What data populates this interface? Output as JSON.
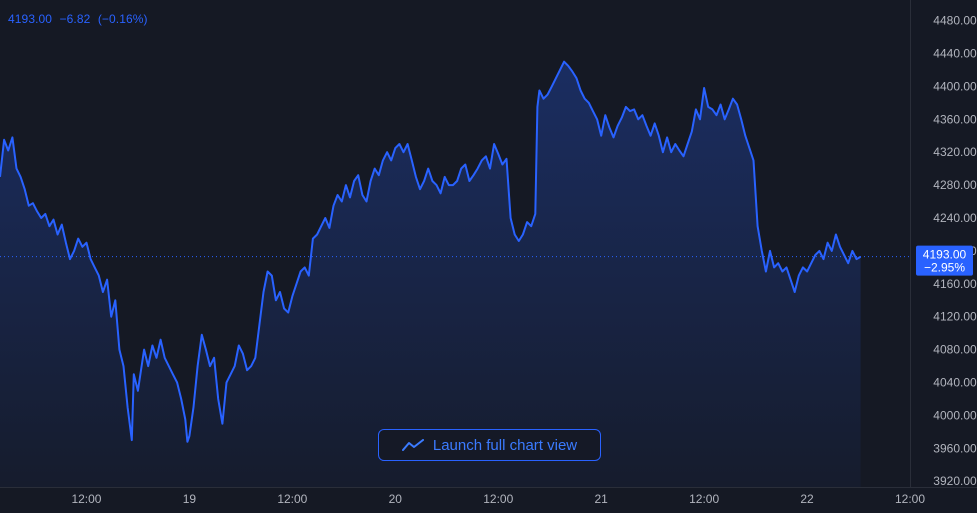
{
  "legend": {
    "price": "4193.00",
    "change": "−6.82",
    "change_pct": "(−0.16%)"
  },
  "launch_button": {
    "label": "Launch full chart view",
    "icon": "trend-line-icon"
  },
  "current_price": {
    "price": "4193.00",
    "change_pct": "−2.95%"
  },
  "colors": {
    "background": "#151924",
    "line": "#2962ff",
    "axis_text": "#b2b5be",
    "tag_bg": "#2962ff",
    "axis_border": "#2a2e39"
  },
  "chart_data": {
    "type": "area",
    "title": "",
    "xlabel": "",
    "ylabel": "",
    "ylim": [
      3913,
      4505
    ],
    "xlim": [
      0,
      4.42
    ],
    "grid": false,
    "legend_placement": "top-left",
    "y_ticks": [
      "4480.00",
      "4440.00",
      "4400.00",
      "4360.00",
      "4320.00",
      "4280.00",
      "4240.00",
      "4200.00",
      "4160.00",
      "4120.00",
      "4080.00",
      "4040.00",
      "4000.00",
      "3960.00",
      "3920.00"
    ],
    "x_ticks": [
      {
        "x": 0.42,
        "label": "12:00"
      },
      {
        "x": 0.92,
        "label": "19"
      },
      {
        "x": 1.42,
        "label": "12:00"
      },
      {
        "x": 1.92,
        "label": "20"
      },
      {
        "x": 2.42,
        "label": "12:00"
      },
      {
        "x": 2.92,
        "label": "21"
      },
      {
        "x": 3.42,
        "label": "12:00"
      },
      {
        "x": 3.92,
        "label": "22"
      },
      {
        "x": 4.42,
        "label": "12:00"
      }
    ],
    "series": [
      {
        "values": [
          [
            0.0,
            4290
          ],
          [
            0.02,
            4335
          ],
          [
            0.04,
            4322
          ],
          [
            0.06,
            4338
          ],
          [
            0.08,
            4300
          ],
          [
            0.1,
            4290
          ],
          [
            0.12,
            4275
          ],
          [
            0.14,
            4255
          ],
          [
            0.16,
            4258
          ],
          [
            0.18,
            4248
          ],
          [
            0.2,
            4240
          ],
          [
            0.22,
            4245
          ],
          [
            0.24,
            4230
          ],
          [
            0.26,
            4238
          ],
          [
            0.28,
            4220
          ],
          [
            0.3,
            4232
          ],
          [
            0.32,
            4210
          ],
          [
            0.34,
            4190
          ],
          [
            0.36,
            4200
          ],
          [
            0.38,
            4215
          ],
          [
            0.4,
            4205
          ],
          [
            0.42,
            4210
          ],
          [
            0.44,
            4190
          ],
          [
            0.46,
            4180
          ],
          [
            0.48,
            4170
          ],
          [
            0.5,
            4150
          ],
          [
            0.52,
            4165
          ],
          [
            0.54,
            4120
          ],
          [
            0.56,
            4140
          ],
          [
            0.58,
            4080
          ],
          [
            0.6,
            4060
          ],
          [
            0.62,
            4010
          ],
          [
            0.64,
            3970
          ],
          [
            0.65,
            4050
          ],
          [
            0.67,
            4030
          ],
          [
            0.7,
            4080
          ],
          [
            0.72,
            4060
          ],
          [
            0.74,
            4085
          ],
          [
            0.76,
            4070
          ],
          [
            0.78,
            4092
          ],
          [
            0.8,
            4070
          ],
          [
            0.82,
            4060
          ],
          [
            0.84,
            4050
          ],
          [
            0.86,
            4040
          ],
          [
            0.88,
            4020
          ],
          [
            0.9,
            3995
          ],
          [
            0.91,
            3968
          ],
          [
            0.92,
            3975
          ],
          [
            0.94,
            4010
          ],
          [
            0.96,
            4060
          ],
          [
            0.98,
            4098
          ],
          [
            1.0,
            4080
          ],
          [
            1.02,
            4060
          ],
          [
            1.04,
            4070
          ],
          [
            1.06,
            4020
          ],
          [
            1.08,
            3990
          ],
          [
            1.1,
            4040
          ],
          [
            1.12,
            4050
          ],
          [
            1.14,
            4060
          ],
          [
            1.16,
            4085
          ],
          [
            1.18,
            4075
          ],
          [
            1.2,
            4055
          ],
          [
            1.22,
            4060
          ],
          [
            1.24,
            4070
          ],
          [
            1.26,
            4110
          ],
          [
            1.28,
            4150
          ],
          [
            1.3,
            4175
          ],
          [
            1.32,
            4170
          ],
          [
            1.34,
            4140
          ],
          [
            1.36,
            4150
          ],
          [
            1.38,
            4130
          ],
          [
            1.4,
            4125
          ],
          [
            1.42,
            4145
          ],
          [
            1.44,
            4160
          ],
          [
            1.46,
            4175
          ],
          [
            1.48,
            4180
          ],
          [
            1.5,
            4170
          ],
          [
            1.52,
            4215
          ],
          [
            1.54,
            4220
          ],
          [
            1.56,
            4230
          ],
          [
            1.58,
            4240
          ],
          [
            1.6,
            4228
          ],
          [
            1.62,
            4255
          ],
          [
            1.64,
            4268
          ],
          [
            1.66,
            4260
          ],
          [
            1.68,
            4280
          ],
          [
            1.7,
            4265
          ],
          [
            1.72,
            4285
          ],
          [
            1.74,
            4292
          ],
          [
            1.76,
            4268
          ],
          [
            1.78,
            4260
          ],
          [
            1.8,
            4285
          ],
          [
            1.82,
            4300
          ],
          [
            1.84,
            4292
          ],
          [
            1.86,
            4310
          ],
          [
            1.88,
            4320
          ],
          [
            1.9,
            4310
          ],
          [
            1.92,
            4325
          ],
          [
            1.94,
            4330
          ],
          [
            1.96,
            4320
          ],
          [
            1.98,
            4330
          ],
          [
            2.0,
            4310
          ],
          [
            2.02,
            4290
          ],
          [
            2.04,
            4275
          ],
          [
            2.06,
            4285
          ],
          [
            2.08,
            4300
          ],
          [
            2.1,
            4285
          ],
          [
            2.12,
            4280
          ],
          [
            2.14,
            4270
          ],
          [
            2.16,
            4290
          ],
          [
            2.18,
            4280
          ],
          [
            2.2,
            4280
          ],
          [
            2.22,
            4285
          ],
          [
            2.24,
            4300
          ],
          [
            2.26,
            4305
          ],
          [
            2.28,
            4285
          ],
          [
            2.3,
            4292
          ],
          [
            2.32,
            4300
          ],
          [
            2.34,
            4310
          ],
          [
            2.36,
            4315
          ],
          [
            2.38,
            4300
          ],
          [
            2.4,
            4330
          ],
          [
            2.42,
            4318
          ],
          [
            2.44,
            4305
          ],
          [
            2.46,
            4312
          ],
          [
            2.48,
            4240
          ],
          [
            2.5,
            4220
          ],
          [
            2.52,
            4212
          ],
          [
            2.54,
            4220
          ],
          [
            2.56,
            4235
          ],
          [
            2.58,
            4230
          ],
          [
            2.6,
            4245
          ],
          [
            2.61,
            4375
          ],
          [
            2.62,
            4395
          ],
          [
            2.64,
            4385
          ],
          [
            2.66,
            4390
          ],
          [
            2.68,
            4400
          ],
          [
            2.7,
            4410
          ],
          [
            2.72,
            4420
          ],
          [
            2.74,
            4430
          ],
          [
            2.76,
            4425
          ],
          [
            2.78,
            4418
          ],
          [
            2.8,
            4410
          ],
          [
            2.82,
            4395
          ],
          [
            2.84,
            4385
          ],
          [
            2.86,
            4380
          ],
          [
            2.88,
            4370
          ],
          [
            2.9,
            4360
          ],
          [
            2.92,
            4340
          ],
          [
            2.94,
            4365
          ],
          [
            2.96,
            4350
          ],
          [
            2.98,
            4338
          ],
          [
            3.0,
            4352
          ],
          [
            3.02,
            4362
          ],
          [
            3.04,
            4375
          ],
          [
            3.06,
            4370
          ],
          [
            3.08,
            4372
          ],
          [
            3.1,
            4360
          ],
          [
            3.12,
            4365
          ],
          [
            3.14,
            4352
          ],
          [
            3.16,
            4340
          ],
          [
            3.18,
            4355
          ],
          [
            3.2,
            4340
          ],
          [
            3.22,
            4320
          ],
          [
            3.24,
            4338
          ],
          [
            3.26,
            4320
          ],
          [
            3.28,
            4330
          ],
          [
            3.3,
            4322
          ],
          [
            3.32,
            4315
          ],
          [
            3.34,
            4330
          ],
          [
            3.36,
            4345
          ],
          [
            3.38,
            4372
          ],
          [
            3.4,
            4360
          ],
          [
            3.42,
            4398
          ],
          [
            3.44,
            4375
          ],
          [
            3.46,
            4372
          ],
          [
            3.48,
            4365
          ],
          [
            3.5,
            4378
          ],
          [
            3.52,
            4360
          ],
          [
            3.54,
            4372
          ],
          [
            3.56,
            4385
          ],
          [
            3.58,
            4378
          ],
          [
            3.6,
            4360
          ],
          [
            3.62,
            4340
          ],
          [
            3.64,
            4325
          ],
          [
            3.66,
            4310
          ],
          [
            3.68,
            4230
          ],
          [
            3.7,
            4200
          ],
          [
            3.72,
            4175
          ],
          [
            3.74,
            4200
          ],
          [
            3.76,
            4180
          ],
          [
            3.78,
            4185
          ],
          [
            3.8,
            4175
          ],
          [
            3.82,
            4180
          ],
          [
            3.84,
            4165
          ],
          [
            3.86,
            4150
          ],
          [
            3.88,
            4170
          ],
          [
            3.9,
            4180
          ],
          [
            3.92,
            4175
          ],
          [
            3.94,
            4185
          ],
          [
            3.96,
            4195
          ],
          [
            3.98,
            4200
          ],
          [
            4.0,
            4190
          ],
          [
            4.02,
            4210
          ],
          [
            4.04,
            4200
          ],
          [
            4.06,
            4220
          ],
          [
            4.08,
            4205
          ],
          [
            4.1,
            4195
          ],
          [
            4.12,
            4185
          ],
          [
            4.14,
            4200
          ],
          [
            4.16,
            4190
          ],
          [
            4.18,
            4193
          ]
        ]
      }
    ],
    "current_value": 4193.0
  }
}
